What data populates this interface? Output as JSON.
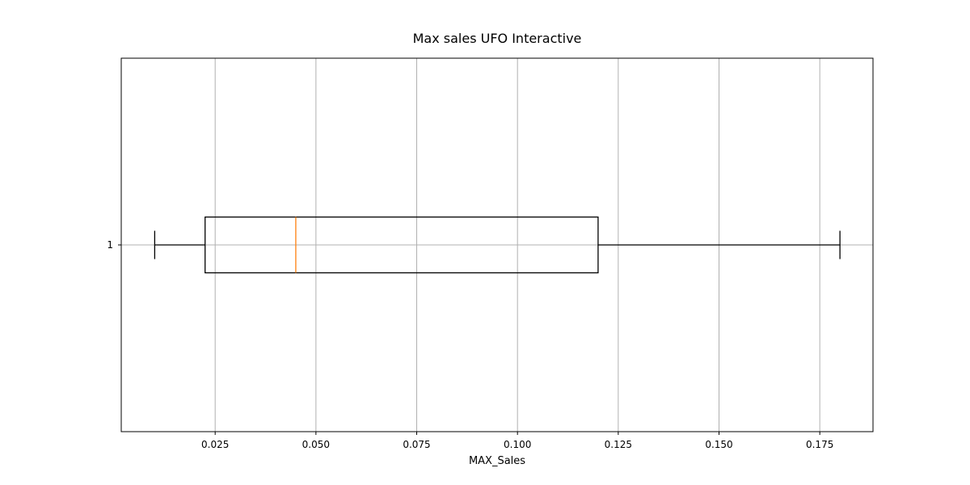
{
  "chart_data": {
    "type": "boxplot",
    "orientation": "horizontal",
    "title": "Max sales UFO Interactive",
    "xlabel": "MAX_Sales",
    "ylabel": "",
    "xlim": [
      0.0017,
      0.1882
    ],
    "xticks": [
      0.025,
      0.05,
      0.075,
      0.1,
      0.125,
      0.15,
      0.175
    ],
    "xtick_labels": [
      "0.025",
      "0.050",
      "0.075",
      "0.100",
      "0.125",
      "0.150",
      "0.175"
    ],
    "categories": [
      "1"
    ],
    "series": [
      {
        "whisker_low": 0.01,
        "q1": 0.0225,
        "median": 0.045,
        "q3": 0.12,
        "whisker_high": 0.18
      }
    ],
    "grid": true,
    "colors": {
      "box": "#000000",
      "median": "#ff7f0e",
      "grid": "#b0b0b0",
      "frame": "#000000"
    }
  }
}
